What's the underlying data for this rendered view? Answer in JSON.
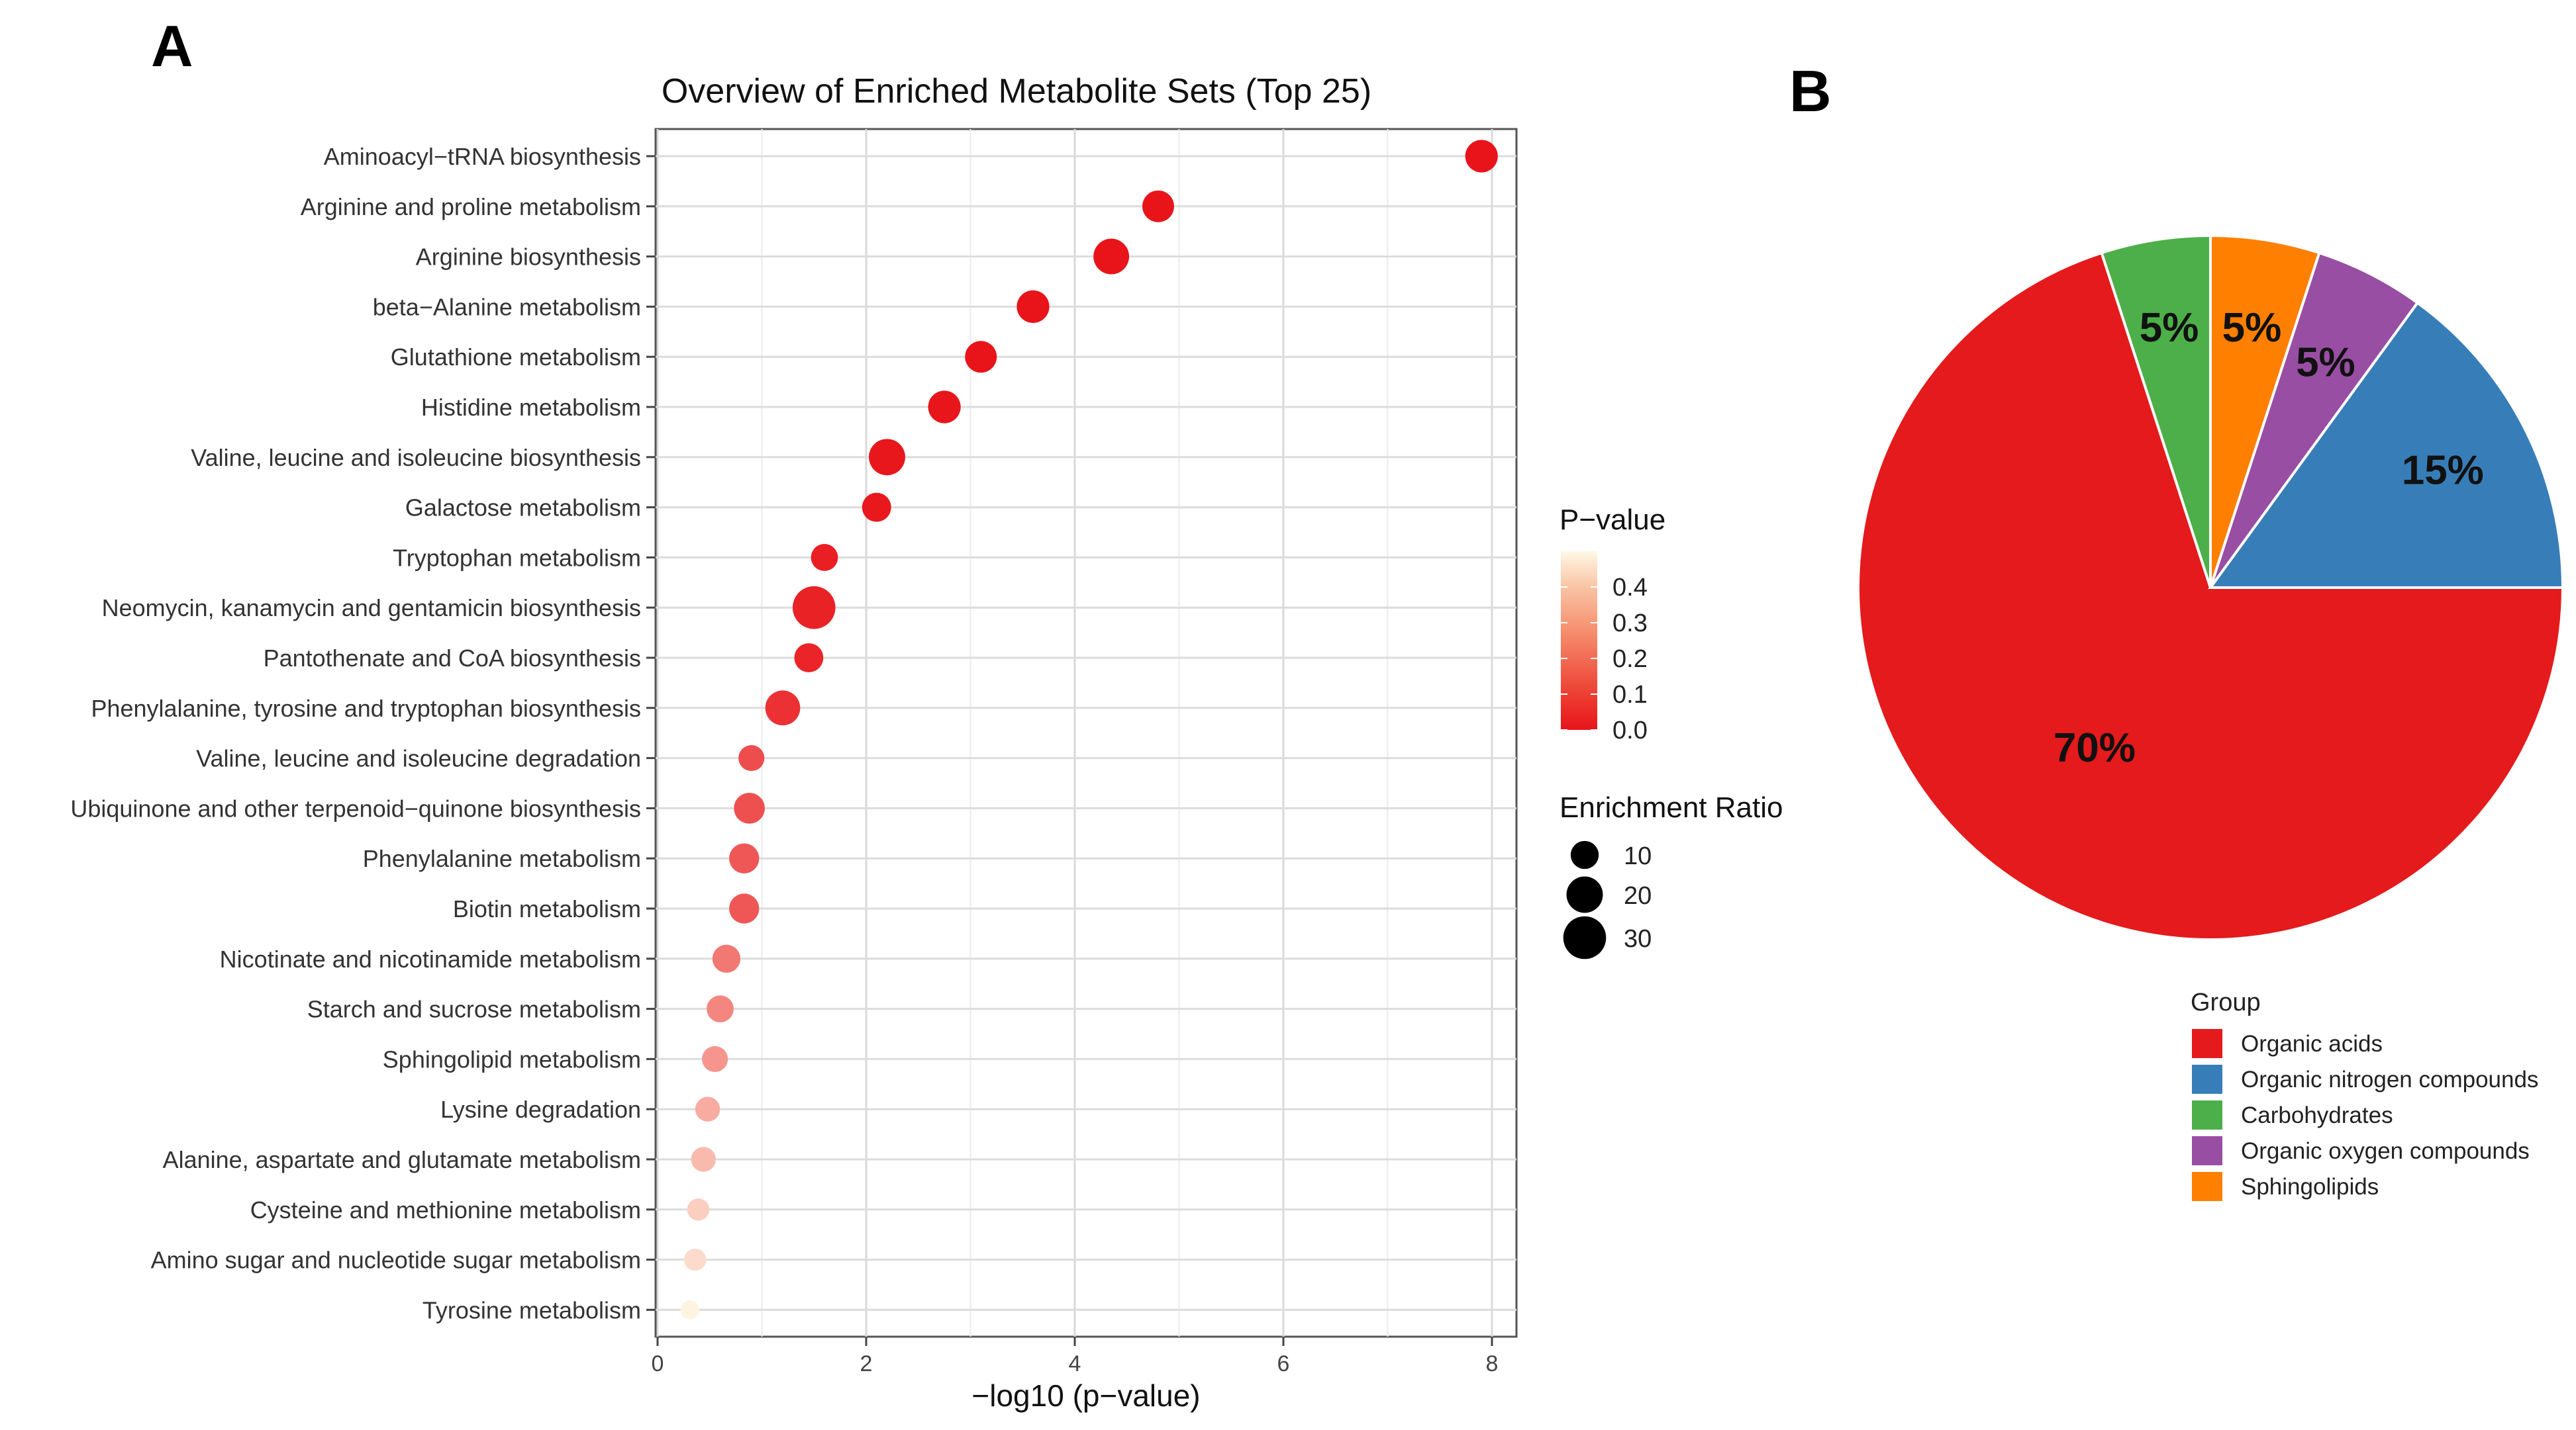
{
  "panels": {
    "a": "A",
    "b": "B"
  },
  "chart_data": [
    {
      "type": "scatter",
      "title": "Overview of Enriched Metabolite Sets (Top 25)",
      "xlabel": "−log10 (p−value)",
      "ylabel": "",
      "xlim": [
        0,
        8.2
      ],
      "xticks": [
        "0",
        "2",
        "4",
        "6",
        "8"
      ],
      "xtick_values": [
        0,
        2,
        4,
        6,
        8
      ],
      "categories": [
        "Aminoacyl−tRNA biosynthesis",
        "Arginine and proline metabolism",
        "Arginine biosynthesis",
        "beta−Alanine metabolism",
        "Glutathione metabolism",
        "Histidine metabolism",
        "Valine, leucine and isoleucine biosynthesis",
        "Galactose metabolism",
        "Tryptophan metabolism",
        "Neomycin, kanamycin and gentamicin biosynthesis",
        "Pantothenate and CoA biosynthesis",
        "Phenylalanine, tyrosine and tryptophan biosynthesis",
        "Valine, leucine and isoleucine degradation",
        "Ubiquinone and other terpenoid−quinone biosynthesis",
        "Phenylalanine metabolism",
        "Biotin metabolism",
        "Nicotinate and nicotinamide metabolism",
        "Starch and sucrose metabolism",
        "Sphingolipid metabolism",
        "Lysine degradation",
        "Alanine, aspartate and glutamate metabolism",
        "Cysteine and methionine metabolism",
        "Amino sugar and nucleotide sugar metabolism",
        "Tyrosine metabolism"
      ],
      "neg_log10_p": [
        7.9,
        4.8,
        4.35,
        3.6,
        3.1,
        2.75,
        2.2,
        2.1,
        1.6,
        1.5,
        1.45,
        1.2,
        0.9,
        0.88,
        0.83,
        0.83,
        0.66,
        0.6,
        0.55,
        0.48,
        0.44,
        0.39,
        0.36,
        0.31
      ],
      "p_value": [
        0.0,
        0.0,
        0.0,
        0.0,
        0.001,
        0.002,
        0.006,
        0.008,
        0.025,
        0.03,
        0.035,
        0.063,
        0.126,
        0.132,
        0.148,
        0.148,
        0.219,
        0.251,
        0.282,
        0.331,
        0.363,
        0.407,
        0.437,
        0.49
      ],
      "enrichment_ratio": [
        15,
        14,
        19,
        15,
        14,
        15,
        20,
        11,
        9,
        30,
        11,
        18,
        8,
        13,
        12,
        12,
        10,
        9,
        8,
        7,
        7,
        5,
        5,
        3
      ],
      "color_legend": {
        "title": "P−value",
        "ticks": [
          "0.4",
          "0.3",
          "0.2",
          "0.1",
          "0.0"
        ],
        "tick_values": [
          0.4,
          0.3,
          0.2,
          0.1,
          0.0
        ],
        "range": [
          0.0,
          0.5
        ],
        "low_color": "#e8141a",
        "high_color": "#fff8e6"
      },
      "size_legend": {
        "title": "Enrichment Ratio",
        "labels": [
          "10",
          "20",
          "30"
        ],
        "values": [
          10,
          20,
          30
        ]
      }
    },
    {
      "type": "pie",
      "legend_title": "Group",
      "labels": [
        "Organic acids",
        "Organic nitrogen compounds",
        "Carbohydrates",
        "Organic oxygen compounds",
        "Sphingolipids"
      ],
      "values": [
        70,
        15,
        5,
        5,
        5
      ],
      "percent_labels": [
        "70%",
        "15%",
        "5%",
        "5%",
        "5%"
      ],
      "colors": [
        "#e41a1c",
        "#377eb8",
        "#4daf4a",
        "#984ea3",
        "#ff7f00"
      ]
    }
  ]
}
